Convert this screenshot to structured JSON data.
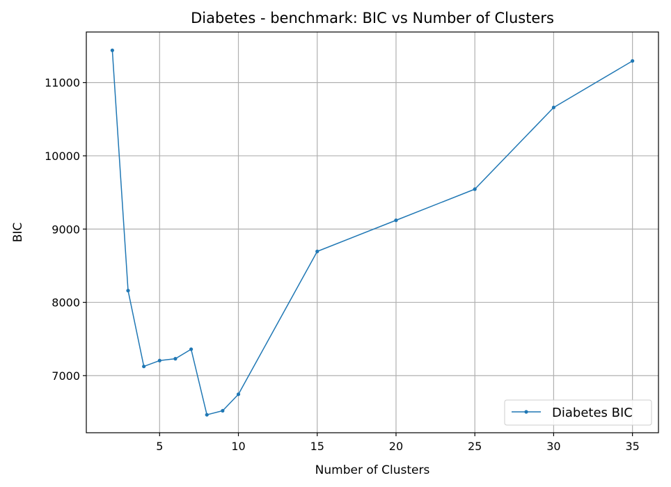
{
  "chart_data": {
    "type": "line",
    "title": "Diabetes - benchmark: BIC vs Number of Clusters",
    "xlabel": "Number of Clusters",
    "ylabel": "BIC",
    "xlim": [
      0.35,
      36.65
    ],
    "ylim": [
      6220,
      11690
    ],
    "xticks": [
      5,
      10,
      15,
      20,
      25,
      30,
      35
    ],
    "yticks": [
      7000,
      8000,
      9000,
      10000,
      11000
    ],
    "grid": true,
    "legend_position": "lower right",
    "series": [
      {
        "name": "Diabetes BIC",
        "color": "#1f77b4",
        "marker": "circle",
        "x": [
          2,
          3,
          4,
          5,
          6,
          7,
          8,
          9,
          10,
          15,
          20,
          25,
          30,
          35
        ],
        "y": [
          11440,
          8160,
          7125,
          7205,
          7230,
          7360,
          6465,
          6520,
          6745,
          8695,
          9120,
          9545,
          10660,
          11295
        ]
      }
    ]
  }
}
